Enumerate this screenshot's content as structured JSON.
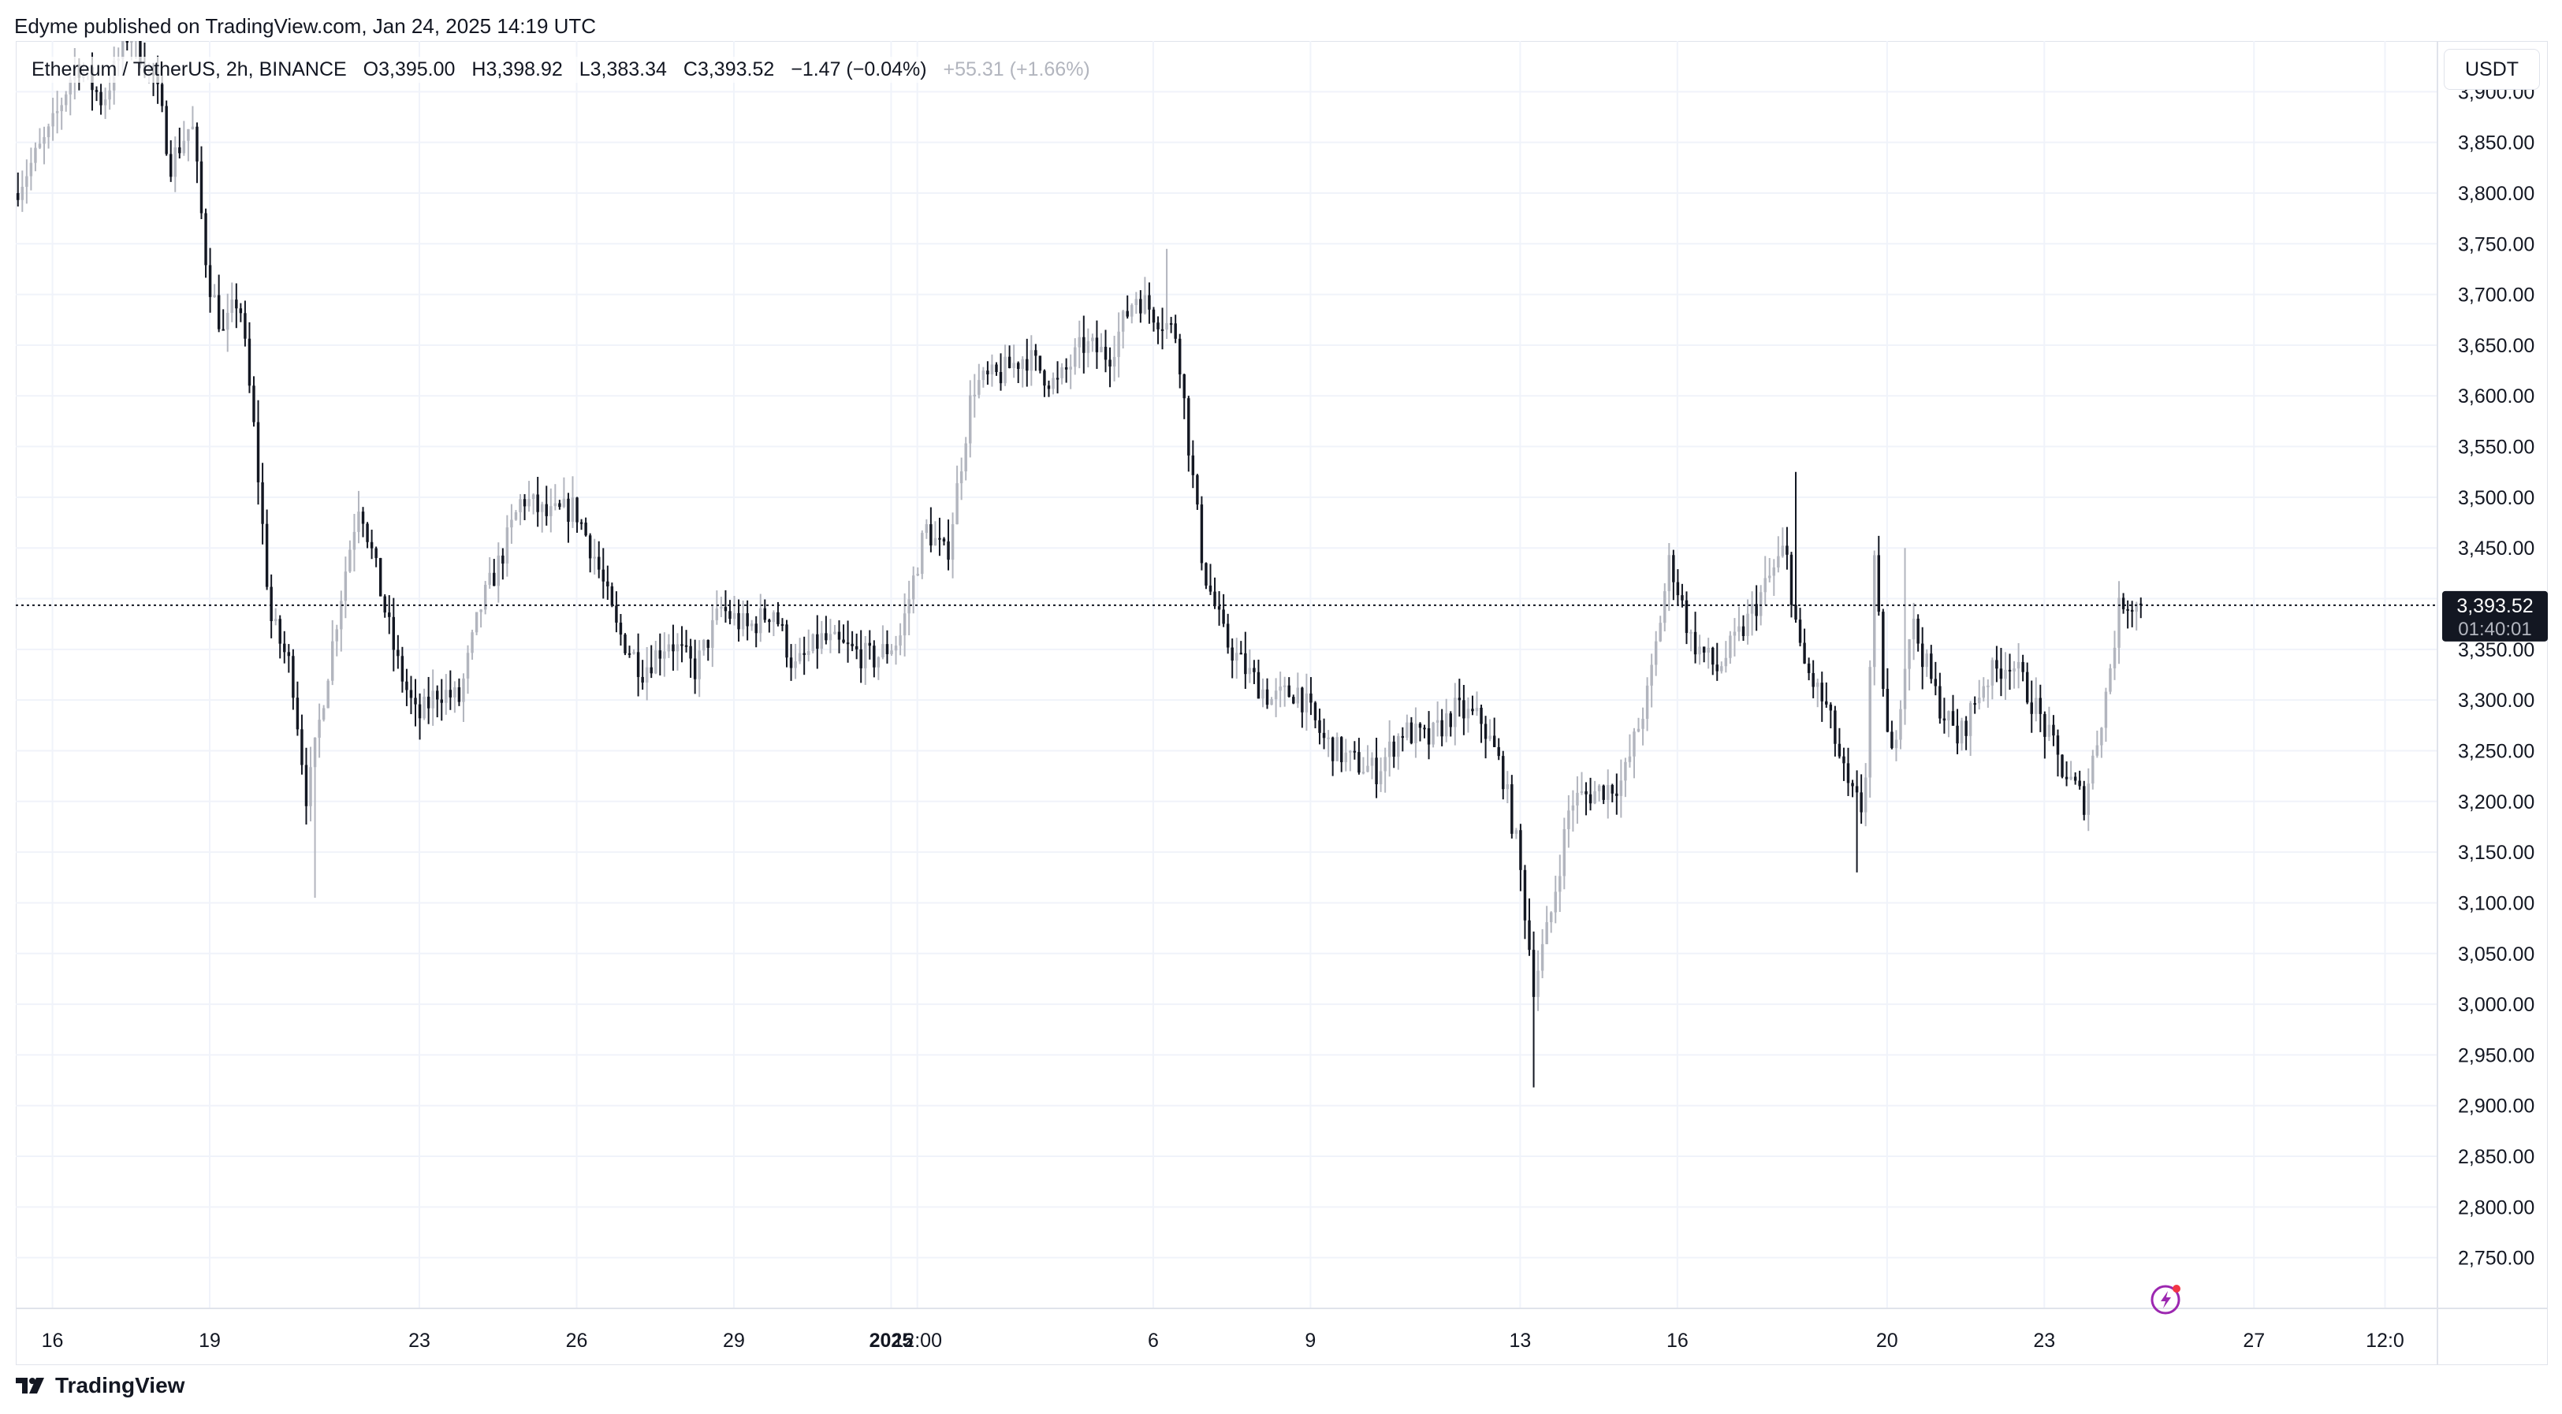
{
  "header": {
    "published_text": "Edyme published on TradingView.com, Jan 24, 2025 14:19 UTC"
  },
  "legend": {
    "symbol": "Ethereum / TetherUS, 2h, BINANCE",
    "open": "O3,395.00",
    "high": "H3,398.92",
    "low": "L3,383.34",
    "close": "C3,393.52",
    "change": "−1.47 (−0.04%)",
    "session_change": "+55.31 (+1.66%)"
  },
  "currency_button": {
    "label": "USDT"
  },
  "price_marker": {
    "price": "3,393.52",
    "countdown": "01:40:01"
  },
  "footer": {
    "brand": "TradingView"
  },
  "colors": {
    "up": "#b2b5be",
    "down": "#131722",
    "grid": "#f0f3fa",
    "border": "#e0e3eb",
    "marker_bg": "#131722",
    "flash_icon": "#9c27b0",
    "flash_dot": "#f23645"
  },
  "icons": {
    "flash": "lightning-circle-icon",
    "logo": "tradingview-logo-icon"
  },
  "chart_data": {
    "type": "candlestick",
    "title": "Ethereum / TetherUS, 2h, BINANCE",
    "ylabel": "USDT",
    "ylim": [
      2700,
      3950
    ],
    "y_ticks": [
      "3,900.00",
      "3,850.00",
      "3,800.00",
      "3,750.00",
      "3,700.00",
      "3,650.00",
      "3,600.00",
      "3,550.00",
      "3,500.00",
      "3,450.00",
      "3,400.00",
      "3,350.00",
      "3,300.00",
      "3,250.00",
      "3,200.00",
      "3,150.00",
      "3,100.00",
      "3,050.00",
      "3,000.00",
      "2,950.00",
      "2,900.00",
      "2,850.00",
      "2,800.00",
      "2,750.00"
    ],
    "x_ticks": [
      {
        "label": "16",
        "day": 0,
        "bold": false
      },
      {
        "label": "19",
        "day": 3,
        "bold": false
      },
      {
        "label": "23",
        "day": 7,
        "bold": false
      },
      {
        "label": "26",
        "day": 10,
        "bold": false
      },
      {
        "label": "29",
        "day": 13,
        "bold": false
      },
      {
        "label": "2025",
        "day": 16,
        "bold": true
      },
      {
        "label": "12:00",
        "day": 16.5,
        "bold": false
      },
      {
        "label": "6",
        "day": 21,
        "bold": false
      },
      {
        "label": "9",
        "day": 24,
        "bold": false
      },
      {
        "label": "13",
        "day": 28,
        "bold": false
      },
      {
        "label": "16",
        "day": 31,
        "bold": false
      },
      {
        "label": "20",
        "day": 35,
        "bold": false
      },
      {
        "label": "23",
        "day": 38,
        "bold": false
      },
      {
        "label": "27",
        "day": 42,
        "bold": false
      },
      {
        "label": "12:0",
        "day": 44.5,
        "bold": false
      }
    ],
    "x_range_days": [
      -0.7,
      45.5
    ],
    "bars_per_day": 12,
    "grid": true,
    "last_price": 3393.52,
    "path_anchors": [
      {
        "day": -0.7,
        "price": 3800
      },
      {
        "day": 0,
        "price": 3860
      },
      {
        "day": 0.5,
        "price": 3930
      },
      {
        "day": 1,
        "price": 3890
      },
      {
        "day": 1.5,
        "price": 3960
      },
      {
        "day": 2,
        "price": 3910
      },
      {
        "day": 2.3,
        "price": 3830
      },
      {
        "day": 2.7,
        "price": 3870
      },
      {
        "day": 3,
        "price": 3720
      },
      {
        "day": 3.3,
        "price": 3660
      },
      {
        "day": 3.6,
        "price": 3700
      },
      {
        "day": 3.9,
        "price": 3560
      },
      {
        "day": 4.2,
        "price": 3380
      },
      {
        "day": 4.6,
        "price": 3330
      },
      {
        "day": 4.9,
        "price": 3200
      },
      {
        "day": 5.2,
        "price": 3300
      },
      {
        "day": 5.6,
        "price": 3420
      },
      {
        "day": 5.9,
        "price": 3500
      },
      {
        "day": 6.2,
        "price": 3430
      },
      {
        "day": 6.6,
        "price": 3340
      },
      {
        "day": 7,
        "price": 3280
      },
      {
        "day": 7.4,
        "price": 3310
      },
      {
        "day": 7.8,
        "price": 3300
      },
      {
        "day": 8.2,
        "price": 3390
      },
      {
        "day": 8.6,
        "price": 3440
      },
      {
        "day": 9,
        "price": 3500
      },
      {
        "day": 9.5,
        "price": 3480
      },
      {
        "day": 10,
        "price": 3490
      },
      {
        "day": 10.4,
        "price": 3440
      },
      {
        "day": 10.8,
        "price": 3370
      },
      {
        "day": 11.3,
        "price": 3330
      },
      {
        "day": 11.8,
        "price": 3360
      },
      {
        "day": 12.3,
        "price": 3330
      },
      {
        "day": 12.8,
        "price": 3390
      },
      {
        "day": 13.3,
        "price": 3370
      },
      {
        "day": 13.8,
        "price": 3390
      },
      {
        "day": 14.2,
        "price": 3330
      },
      {
        "day": 14.7,
        "price": 3360
      },
      {
        "day": 15.2,
        "price": 3350
      },
      {
        "day": 15.7,
        "price": 3340
      },
      {
        "day": 16.2,
        "price": 3360
      },
      {
        "day": 16.7,
        "price": 3470
      },
      {
        "day": 17.1,
        "price": 3440
      },
      {
        "day": 17.6,
        "price": 3610
      },
      {
        "day": 18.1,
        "price": 3620
      },
      {
        "day": 18.6,
        "price": 3640
      },
      {
        "day": 19.2,
        "price": 3610
      },
      {
        "day": 19.7,
        "price": 3650
      },
      {
        "day": 20.2,
        "price": 3640
      },
      {
        "day": 20.7,
        "price": 3700
      },
      {
        "day": 21.1,
        "price": 3680
      },
      {
        "day": 21.5,
        "price": 3660
      },
      {
        "day": 21.7,
        "price": 3560
      },
      {
        "day": 22,
        "price": 3430
      },
      {
        "day": 22.4,
        "price": 3360
      },
      {
        "day": 22.8,
        "price": 3330
      },
      {
        "day": 23.3,
        "price": 3300
      },
      {
        "day": 23.8,
        "price": 3310
      },
      {
        "day": 24.3,
        "price": 3260
      },
      {
        "day": 24.8,
        "price": 3240
      },
      {
        "day": 25.3,
        "price": 3230
      },
      {
        "day": 25.8,
        "price": 3270
      },
      {
        "day": 26.3,
        "price": 3260
      },
      {
        "day": 26.8,
        "price": 3290
      },
      {
        "day": 27.3,
        "price": 3280
      },
      {
        "day": 27.7,
        "price": 3230
      },
      {
        "day": 28,
        "price": 3150
      },
      {
        "day": 28.3,
        "price": 3020
      },
      {
        "day": 28.6,
        "price": 3080
      },
      {
        "day": 29,
        "price": 3200
      },
      {
        "day": 29.5,
        "price": 3210
      },
      {
        "day": 30,
        "price": 3220
      },
      {
        "day": 30.5,
        "price": 3310
      },
      {
        "day": 30.9,
        "price": 3440
      },
      {
        "day": 31.3,
        "price": 3360
      },
      {
        "day": 31.8,
        "price": 3330
      },
      {
        "day": 32.3,
        "price": 3370
      },
      {
        "day": 32.8,
        "price": 3420
      },
      {
        "day": 33.1,
        "price": 3450
      },
      {
        "day": 33.4,
        "price": 3340
      },
      {
        "day": 33.9,
        "price": 3290
      },
      {
        "day": 34.3,
        "price": 3210
      },
      {
        "day": 34.6,
        "price": 3190
      },
      {
        "day": 34.8,
        "price": 3430
      },
      {
        "day": 35.1,
        "price": 3230
      },
      {
        "day": 35.5,
        "price": 3380
      },
      {
        "day": 36,
        "price": 3300
      },
      {
        "day": 36.4,
        "price": 3260
      },
      {
        "day": 36.9,
        "price": 3320
      },
      {
        "day": 37.4,
        "price": 3340
      },
      {
        "day": 37.9,
        "price": 3290
      },
      {
        "day": 38.4,
        "price": 3230
      },
      {
        "day": 38.8,
        "price": 3200
      },
      {
        "day": 39.2,
        "price": 3300
      },
      {
        "day": 39.5,
        "price": 3400
      },
      {
        "day": 39.8,
        "price": 3393.52
      }
    ]
  }
}
